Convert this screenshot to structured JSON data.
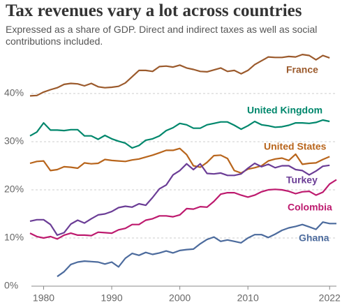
{
  "chart_data": {
    "type": "line",
    "title": "Tax revenues vary a lot across countries",
    "subtitle": "Expressed as a share of GDP. Direct and indirect taxes as well as social contributions included.",
    "x": [
      1978,
      1979,
      1980,
      1981,
      1982,
      1983,
      1984,
      1985,
      1986,
      1987,
      1988,
      1989,
      1990,
      1991,
      1992,
      1993,
      1994,
      1995,
      1996,
      1997,
      1998,
      1999,
      2000,
      2001,
      2002,
      2003,
      2004,
      2005,
      2006,
      2007,
      2008,
      2009,
      2010,
      2011,
      2012,
      2013,
      2014,
      2015,
      2016,
      2017,
      2018,
      2019,
      2020,
      2021,
      2022,
      2023
    ],
    "xlim": [
      1978,
      2023
    ],
    "xticks": [
      1980,
      1990,
      2000,
      2010,
      2022
    ],
    "ylim": [
      0,
      50
    ],
    "yticks": [
      {
        "value": 0,
        "label": "0%"
      },
      {
        "value": 10,
        "label": "10%"
      },
      {
        "value": 20,
        "label": "20%"
      },
      {
        "value": 30,
        "label": "30%"
      },
      {
        "value": 40,
        "label": "40%"
      }
    ],
    "grid": true,
    "series": [
      {
        "name": "France",
        "color": "#9b5a2c",
        "values": [
          39.5,
          39.6,
          40.3,
          40.8,
          41.2,
          41.9,
          42.1,
          42.0,
          41.6,
          42.1,
          41.4,
          41.2,
          41.3,
          41.5,
          42.2,
          43.5,
          44.8,
          44.8,
          44.6,
          45.6,
          45.7,
          45.5,
          45.9,
          45.3,
          45.0,
          44.6,
          44.5,
          44.9,
          45.3,
          44.6,
          44.8,
          44.1,
          44.8,
          46.0,
          46.8,
          47.6,
          47.5,
          47.5,
          47.7,
          47.6,
          48.1,
          47.9,
          47.0,
          47.9,
          47.4,
          null
        ]
      },
      {
        "name": "United Kingdom",
        "color": "#00876c",
        "values": [
          31.2,
          32.0,
          33.9,
          32.4,
          32.4,
          32.3,
          32.5,
          32.5,
          31.2,
          31.2,
          30.5,
          31.3,
          30.6,
          30.1,
          29.7,
          28.7,
          29.2,
          30.3,
          30.6,
          31.2,
          32.3,
          32.9,
          33.8,
          33.5,
          32.8,
          32.8,
          33.5,
          33.8,
          34.1,
          34.1,
          33.4,
          32.6,
          33.3,
          34.2,
          33.5,
          33.3,
          33.0,
          33.1,
          33.4,
          33.9,
          33.9,
          33.8,
          34.0,
          34.5,
          34.2,
          null
        ]
      },
      {
        "name": "United States",
        "color": "#b8651c",
        "values": [
          25.5,
          25.9,
          26.0,
          24.0,
          24.2,
          24.8,
          24.7,
          24.5,
          25.6,
          25.4,
          25.5,
          26.3,
          26.1,
          26.0,
          25.9,
          26.2,
          26.4,
          26.8,
          27.2,
          27.7,
          28.2,
          28.2,
          28.6,
          27.3,
          25.0,
          24.7,
          25.7,
          27.1,
          27.2,
          26.5,
          24.0,
          23.5,
          24.3,
          24.6,
          25.0,
          26.0,
          26.4,
          26.6,
          26.1,
          27.4,
          25.3,
          25.5,
          25.6,
          26.3,
          26.9,
          null
        ]
      },
      {
        "name": "Turkey",
        "color": "#6b3d96",
        "values": [
          13.5,
          13.8,
          13.8,
          12.8,
          10.6,
          11.1,
          12.9,
          13.7,
          13.1,
          14.0,
          14.8,
          15.0,
          15.5,
          16.3,
          16.6,
          16.4,
          17.1,
          16.8,
          18.4,
          20.2,
          21.0,
          23.1,
          24.0,
          25.4,
          24.2,
          25.4,
          23.4,
          23.3,
          23.5,
          23.0,
          23.0,
          23.3,
          24.5,
          25.5,
          24.8,
          25.3,
          24.6,
          25.0,
          25.0,
          24.2,
          24.0,
          23.1,
          23.9,
          24.9,
          25.1,
          null
        ]
      },
      {
        "name": "Colombia",
        "color": "#bd1a6e",
        "values": [
          11.0,
          10.3,
          10.0,
          10.3,
          9.8,
          10.6,
          11.0,
          10.6,
          10.6,
          10.5,
          11.2,
          11.1,
          11.0,
          11.7,
          12.0,
          12.8,
          12.8,
          13.7,
          14.0,
          14.6,
          14.6,
          14.4,
          14.8,
          16.1,
          16.0,
          16.5,
          16.4,
          17.6,
          19.1,
          19.4,
          19.4,
          18.9,
          18.5,
          18.9,
          19.6,
          20.0,
          20.1,
          20.0,
          19.7,
          19.2,
          19.6,
          19.7,
          18.9,
          19.5,
          21.2,
          22.1
        ]
      },
      {
        "name": "Ghana",
        "color": "#4c6b9d",
        "values": [
          null,
          null,
          null,
          null,
          2.0,
          3.0,
          4.5,
          5.0,
          5.2,
          5.1,
          5.0,
          4.6,
          5.0,
          4.0,
          5.8,
          6.8,
          6.4,
          7.0,
          6.6,
          6.9,
          7.3,
          6.9,
          7.4,
          7.6,
          7.7,
          8.8,
          9.7,
          10.2,
          9.3,
          9.6,
          9.3,
          9.0,
          10.0,
          10.7,
          10.7,
          10.1,
          10.8,
          11.6,
          12.1,
          12.4,
          12.8,
          12.3,
          11.8,
          13.3,
          13.0,
          13.0
        ]
      }
    ]
  }
}
